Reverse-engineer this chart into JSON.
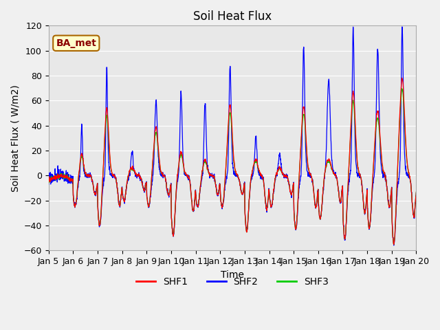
{
  "title": "Soil Heat Flux",
  "xlabel": "Time",
  "ylabel": "Soil Heat Flux (W/m2)",
  "ylim": [
    -60,
    120
  ],
  "xlim": [
    0,
    15
  ],
  "xtick_labels": [
    "Jan 5",
    "Jan 6",
    "Jan 7",
    "Jan 8",
    "Jan 9",
    "Jan 10",
    "Jan 11",
    "Jan 12",
    "Jan 13",
    "Jan 14",
    "Jan 15",
    "Jan 16",
    "Jan 17",
    "Jan 18",
    "Jan 19",
    "Jan 20"
  ],
  "legend_labels": [
    "SHF1",
    "SHF2",
    "SHF3"
  ],
  "line_colors": [
    "#ff0000",
    "#0000ff",
    "#00cc00"
  ],
  "annotation_text": "BA_met",
  "annotation_bg": "#ffffcc",
  "annotation_border": "#aa6600",
  "title_fontsize": 12,
  "label_fontsize": 10,
  "tick_fontsize": 9,
  "legend_fontsize": 10,
  "fig_bg": "#f0f0f0",
  "plot_bg": "#e8e8e8",
  "grid_color": "#ffffff",
  "spike_days": [
    1,
    2,
    3,
    4,
    5,
    6,
    7,
    8,
    9,
    10,
    11,
    12,
    13,
    14
  ],
  "shf2_peaks": [
    38,
    82,
    18,
    53,
    61,
    53,
    80,
    28,
    15,
    94,
    68,
    106,
    91,
    107
  ],
  "shf13_peaks": [
    14,
    43,
    5,
    30,
    15,
    10,
    44,
    10,
    5,
    43,
    10,
    52,
    40,
    60
  ],
  "night_troughs": [
    -25,
    -40,
    -20,
    -25,
    -48,
    -25,
    -25,
    -45,
    -25,
    -43,
    -35,
    -50,
    -42,
    -55
  ],
  "spike_width_shf2": [
    0.03,
    0.03,
    0.04,
    0.05,
    0.04,
    0.04,
    0.04,
    0.04,
    0.05,
    0.04,
    0.06,
    0.04,
    0.05,
    0.04
  ],
  "spike_width_shf13": [
    0.06,
    0.07,
    0.08,
    0.08,
    0.07,
    0.07,
    0.08,
    0.08,
    0.07,
    0.08,
    0.09,
    0.08,
    0.09,
    0.09
  ],
  "spike_pos": [
    0.35,
    0.37,
    0.4,
    0.38,
    0.4,
    0.38,
    0.4,
    0.45,
    0.42,
    0.4,
    0.42,
    0.42,
    0.42,
    0.42
  ]
}
